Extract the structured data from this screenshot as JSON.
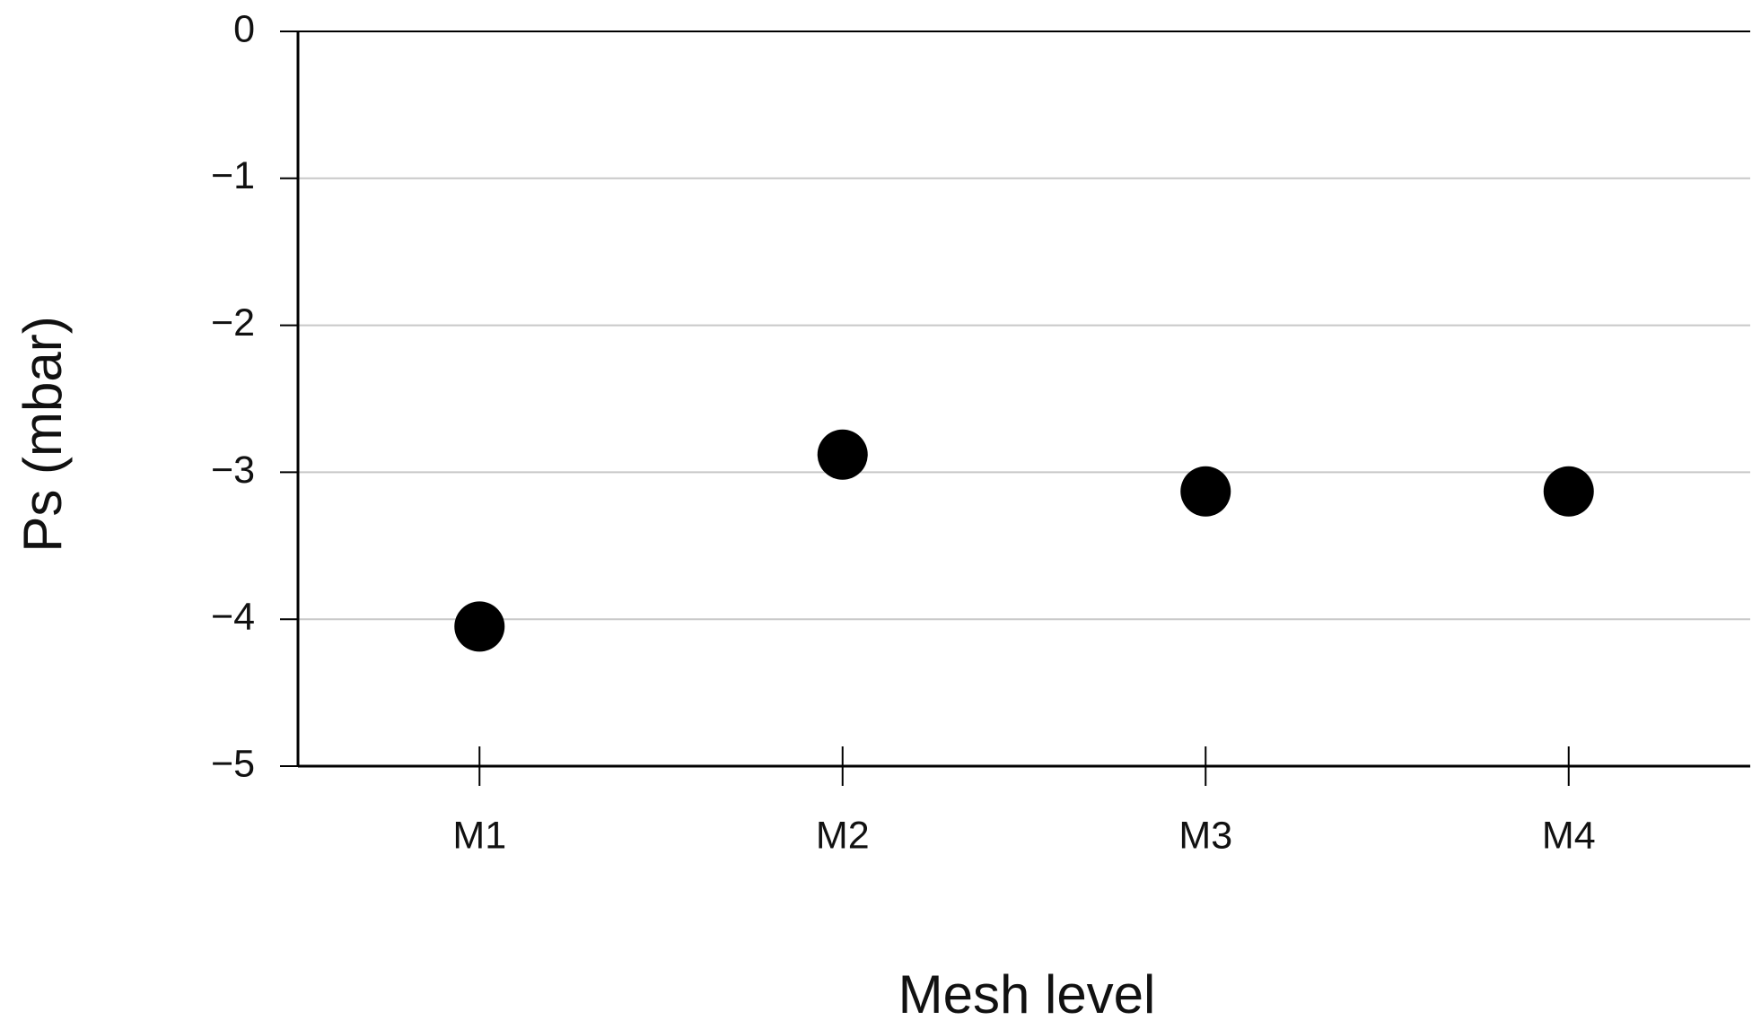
{
  "chart_data": {
    "type": "scatter",
    "categories": [
      "M1",
      "M2",
      "M3",
      "M4"
    ],
    "values": [
      -4.05,
      -2.88,
      -3.13,
      -3.13
    ],
    "color": "#000000",
    "ylim": [
      -5,
      0
    ],
    "yticks": [
      {
        "value": 0,
        "label": "0"
      },
      {
        "value": -1,
        "label": "−1"
      },
      {
        "value": -2,
        "label": "−2"
      },
      {
        "value": -3,
        "label": "−3"
      },
      {
        "value": -4,
        "label": "−4"
      },
      {
        "value": -5,
        "label": "−5"
      }
    ],
    "xlabel": "Mesh level",
    "ylabel": "Ps (mbar)",
    "grid": true
  }
}
